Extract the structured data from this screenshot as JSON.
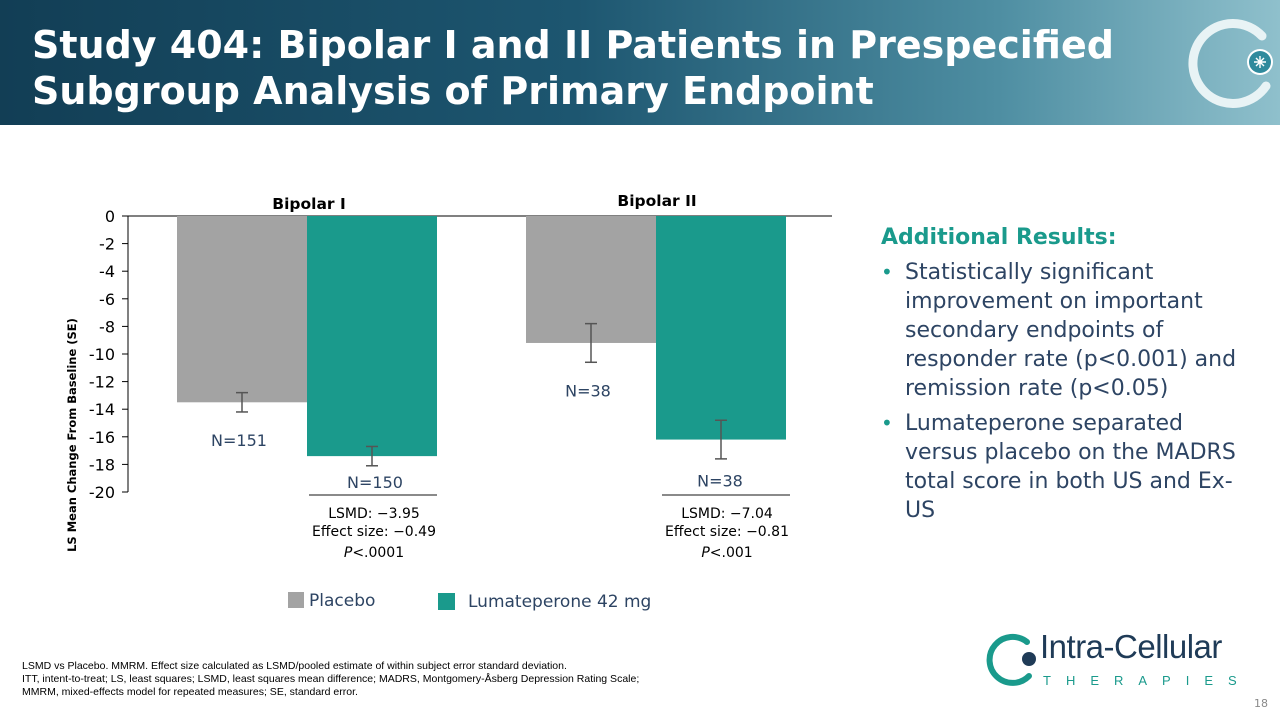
{
  "title": {
    "line1": "Study 404: Bipolar I and II Patients in Prespecified",
    "line2": "Subgroup Analysis of Primary Endpoint"
  },
  "colors": {
    "placebo": "#a3a3a3",
    "lumateperone": "#1a9a8c",
    "heading_teal": "#1a9a8c",
    "text_navy": "#2d4463"
  },
  "chart_data": {
    "type": "bar",
    "categories": [
      "Bipolar I",
      "Bipolar II"
    ],
    "ylabel": "LS Mean Change From Baseline (SE)",
    "ylim": [
      -20,
      0
    ],
    "yticks": [
      "0",
      "-2",
      "-4",
      "-6",
      "-8",
      "-10",
      "-12",
      "-14",
      "-16",
      "-18",
      "-20"
    ],
    "series": [
      {
        "name": "Placebo",
        "values": [
          -13.5,
          -9.2
        ],
        "se": [
          0.7,
          1.4
        ],
        "n_labels": [
          "N=151",
          "N=38"
        ]
      },
      {
        "name": "Lumateperone 42 mg",
        "values": [
          -17.4,
          -16.2
        ],
        "se": [
          0.7,
          1.4
        ],
        "n_labels": [
          "N=150",
          "N=38"
        ]
      }
    ],
    "stats": [
      {
        "lsmd": "LSMD: −3.95",
        "effect": "Effect size: −0.49",
        "p_italic": "P",
        "p_value": "<.0001"
      },
      {
        "lsmd": "LSMD: −7.04",
        "effect": "Effect size: −0.81",
        "p_italic": "P",
        "p_value": "<.001"
      }
    ],
    "legend": [
      "Placebo",
      "Lumateperone 42 mg"
    ],
    "legend_position": "bottom"
  },
  "results": {
    "heading": "Additional Results:",
    "bullets": [
      "Statistically significant improvement on important secondary endpoints of responder rate (p<0.001) and remission rate (p<0.05)",
      "Lumateperone separated versus placebo on the MADRS total score in both US and Ex-US"
    ]
  },
  "footnotes": [
    "LSMD vs Placebo. MMRM. Effect size calculated as LSMD/pooled estimate of within subject error standard deviation.",
    "ITT, intent-to-treat; LS, least squares; LSMD, least squares mean difference; MADRS, Montgomery-Åsberg Depression Rating Scale;",
    "MMRM, mixed-effects model for repeated measures; SE, standard error."
  ],
  "brand": {
    "name": "Intra-Cellular",
    "sub": "THERAPIES",
    "logo_icon": "ring-logo-icon"
  },
  "page_number": "18"
}
